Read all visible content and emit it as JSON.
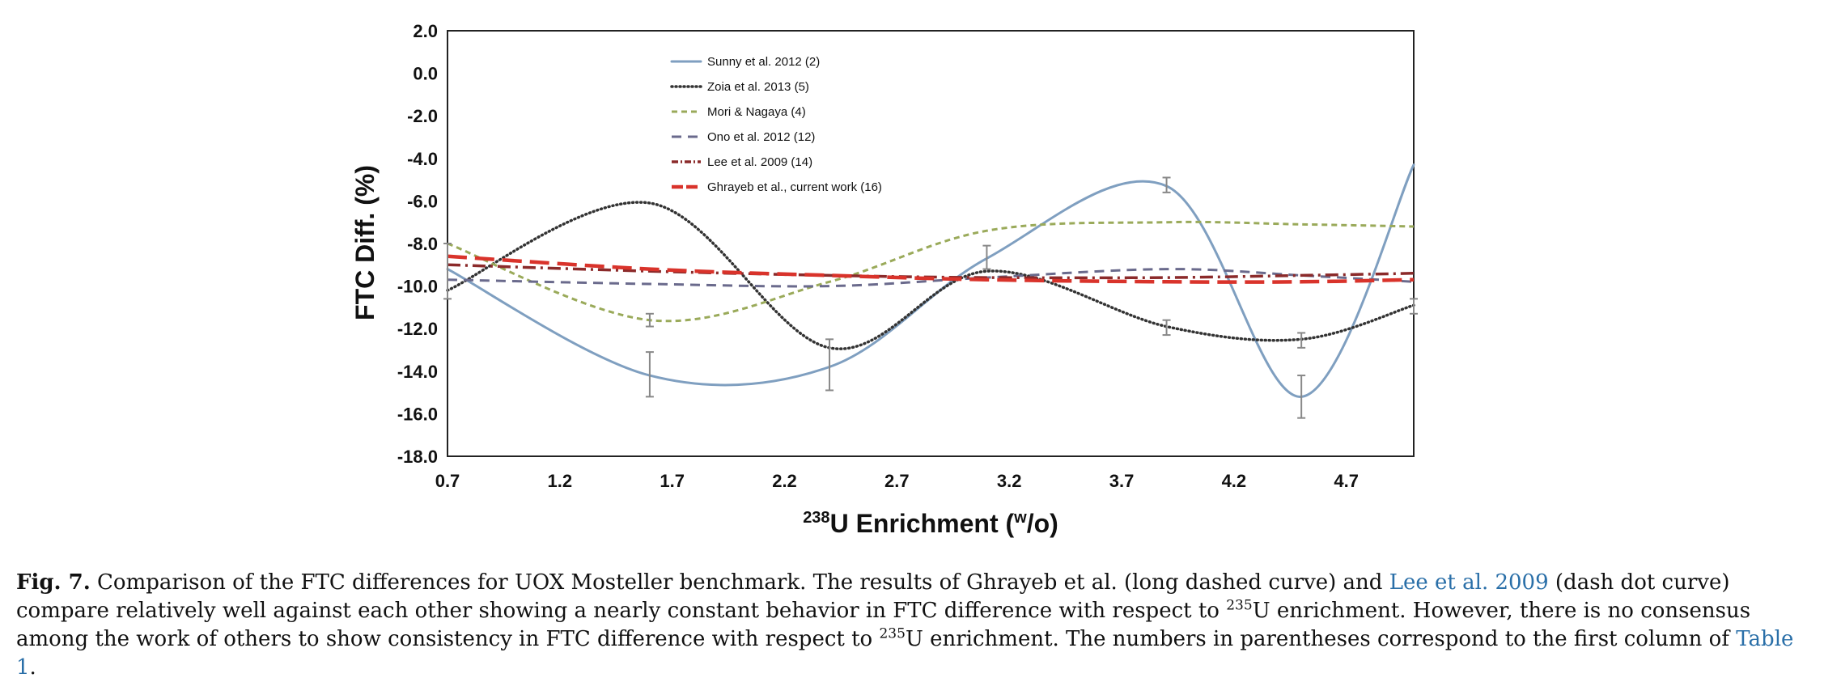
{
  "chart_data": {
    "type": "line",
    "xlabel_parts": {
      "sup": "238",
      "main": "U Enrichment (",
      "sup2": "w",
      "end": "/o)"
    },
    "ylabel": "FTC Diff. (%)",
    "xlim": [
      0.7,
      5.0
    ],
    "ylim": [
      -18.0,
      2.0
    ],
    "xticks": [
      "0.7",
      "1.2",
      "1.7",
      "2.2",
      "2.7",
      "3.2",
      "3.7",
      "4.2",
      "4.7"
    ],
    "yticks": [
      "2.0",
      "0.0",
      "-2.0",
      "-4.0",
      "-6.0",
      "-8.0",
      "-10.0",
      "-12.0",
      "-14.0",
      "-16.0",
      "-18.0"
    ],
    "legend_position": "top-left",
    "series": [
      {
        "name": "Sunny et al. 2012 (2)",
        "color": "#7f9fc0",
        "style": "solid",
        "x": [
          0.7,
          1.6,
          2.4,
          3.1,
          3.9,
          4.5,
          5.0
        ],
        "y": [
          -9.2,
          -14.2,
          -13.8,
          -8.7,
          -5.3,
          -15.2,
          -4.3
        ]
      },
      {
        "name": "Zoia et al. 2013 (5)",
        "color": "#333333",
        "style": "dotted",
        "x": [
          0.7,
          1.6,
          2.4,
          3.1,
          3.9,
          4.5,
          5.0
        ],
        "y": [
          -10.2,
          -6.1,
          -12.9,
          -9.3,
          -11.9,
          -12.5,
          -10.9
        ]
      },
      {
        "name": "Mori & Nagaya (4)",
        "color": "#9aaa5a",
        "style": "short-dash",
        "x": [
          0.7,
          1.6,
          2.4,
          3.1,
          3.9,
          4.5,
          5.0
        ],
        "y": [
          -8.0,
          -11.6,
          -9.8,
          -7.4,
          -7.0,
          -7.1,
          -7.2
        ]
      },
      {
        "name": "Ono et al. 2012 (12)",
        "color": "#6a6a8c",
        "style": "dash",
        "x": [
          0.7,
          1.6,
          2.4,
          3.1,
          3.9,
          4.5,
          5.0
        ],
        "y": [
          -9.7,
          -9.9,
          -10.0,
          -9.6,
          -9.2,
          -9.5,
          -9.8
        ]
      },
      {
        "name": "Lee et al. 2009 (14)",
        "color": "#8b2a2a",
        "style": "dash-dot",
        "x": [
          0.7,
          1.6,
          2.4,
          3.1,
          3.9,
          4.5,
          5.0
        ],
        "y": [
          -9.0,
          -9.3,
          -9.5,
          -9.6,
          -9.6,
          -9.5,
          -9.4
        ]
      },
      {
        "name": "Ghrayeb et al., current work (16)",
        "color": "#d9332b",
        "style": "long-dash",
        "x": [
          0.7,
          1.6,
          2.4,
          3.1,
          3.9,
          4.5,
          5.0
        ],
        "y": [
          -8.6,
          -9.2,
          -9.5,
          -9.7,
          -9.8,
          -9.8,
          -9.7
        ]
      }
    ],
    "error_bars": [
      {
        "x": 0.7,
        "low": -10.6,
        "high": -8.0
      },
      {
        "x": 1.6,
        "low": -15.2,
        "high": -13.1
      },
      {
        "x": 1.6,
        "low": -11.9,
        "high": -11.3
      },
      {
        "x": 2.4,
        "low": -14.9,
        "high": -12.5
      },
      {
        "x": 3.1,
        "low": -9.2,
        "high": -8.1
      },
      {
        "x": 3.9,
        "low": -5.6,
        "high": -4.9
      },
      {
        "x": 3.9,
        "low": -12.3,
        "high": -11.6
      },
      {
        "x": 4.5,
        "low": -16.2,
        "high": -14.2
      },
      {
        "x": 4.5,
        "low": -12.9,
        "high": -12.2
      },
      {
        "x": 5.0,
        "low": -11.3,
        "high": -10.6
      }
    ]
  },
  "caption": {
    "label": "Fig. 7.",
    "t1": " Comparison of the FTC differences for UOX Mosteller benchmark. The results of Ghrayeb et al. (long dashed curve) and ",
    "link1": "Lee et al. 2009",
    "t2": " (dash dot curve) compare relatively well against each other showing a nearly constant behavior in FTC difference with respect to ",
    "sup1": "235",
    "t3": "U enrichment. However, there is no consensus among the work of others to show consistency in FTC difference with respect to ",
    "sup2": "235",
    "t4": "U enrichment. The numbers in parentheses correspond to the first column of ",
    "link2": "Table 1",
    "t5": "."
  }
}
